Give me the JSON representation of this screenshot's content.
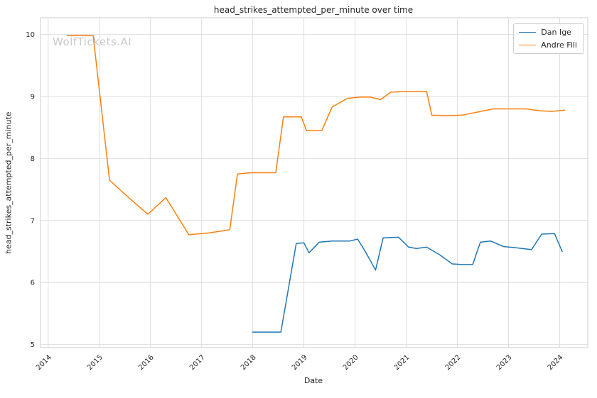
{
  "watermark": "WolfTickets.AI",
  "chart_data": {
    "type": "line",
    "title": "head_strikes_attempted_per_minute over time",
    "xlabel": "Date",
    "ylabel": "head_strikes_attempted_per_minute",
    "xlim": [
      2013.85,
      2024.55
    ],
    "ylim": [
      4.95,
      10.27
    ],
    "xticks": [
      2014,
      2015,
      2016,
      2017,
      2018,
      2019,
      2020,
      2021,
      2022,
      2023,
      2024
    ],
    "yticks": [
      5,
      6,
      7,
      8,
      9,
      10
    ],
    "grid": true,
    "legend_position": "upper right",
    "series": [
      {
        "name": "Dan Ige",
        "color": "#1f77b4",
        "points": [
          [
            2018.0,
            5.2
          ],
          [
            2018.3,
            5.2
          ],
          [
            2018.55,
            5.2
          ],
          [
            2018.85,
            6.63
          ],
          [
            2019.0,
            6.64
          ],
          [
            2019.1,
            6.48
          ],
          [
            2019.3,
            6.65
          ],
          [
            2019.55,
            6.67
          ],
          [
            2019.9,
            6.67
          ],
          [
            2020.05,
            6.7
          ],
          [
            2020.2,
            6.5
          ],
          [
            2020.4,
            6.2
          ],
          [
            2020.55,
            6.72
          ],
          [
            2020.85,
            6.73
          ],
          [
            2021.05,
            6.57
          ],
          [
            2021.2,
            6.55
          ],
          [
            2021.4,
            6.57
          ],
          [
            2021.65,
            6.45
          ],
          [
            2021.9,
            6.3
          ],
          [
            2022.1,
            6.29
          ],
          [
            2022.3,
            6.29
          ],
          [
            2022.45,
            6.65
          ],
          [
            2022.65,
            6.67
          ],
          [
            2022.9,
            6.58
          ],
          [
            2023.15,
            6.56
          ],
          [
            2023.45,
            6.53
          ],
          [
            2023.65,
            6.78
          ],
          [
            2023.9,
            6.79
          ],
          [
            2024.05,
            6.5
          ]
        ]
      },
      {
        "name": "Andre Fili",
        "color": "#ff7f0e",
        "points": [
          [
            2014.37,
            9.98
          ],
          [
            2014.88,
            9.98
          ],
          [
            2015.2,
            7.65
          ],
          [
            2015.6,
            7.35
          ],
          [
            2015.95,
            7.1
          ],
          [
            2016.3,
            7.37
          ],
          [
            2016.75,
            6.77
          ],
          [
            2017.15,
            6.8
          ],
          [
            2017.55,
            6.85
          ],
          [
            2017.7,
            7.75
          ],
          [
            2017.95,
            7.77
          ],
          [
            2018.45,
            7.77
          ],
          [
            2018.6,
            8.67
          ],
          [
            2018.95,
            8.67
          ],
          [
            2019.05,
            8.45
          ],
          [
            2019.35,
            8.45
          ],
          [
            2019.55,
            8.83
          ],
          [
            2019.85,
            8.97
          ],
          [
            2020.1,
            8.99
          ],
          [
            2020.3,
            8.99
          ],
          [
            2020.5,
            8.95
          ],
          [
            2020.7,
            9.07
          ],
          [
            2021.0,
            9.08
          ],
          [
            2021.4,
            9.08
          ],
          [
            2021.5,
            8.7
          ],
          [
            2021.8,
            8.69
          ],
          [
            2022.1,
            8.7
          ],
          [
            2022.4,
            8.75
          ],
          [
            2022.7,
            8.8
          ],
          [
            2023.1,
            8.8
          ],
          [
            2023.35,
            8.8
          ],
          [
            2023.6,
            8.77
          ],
          [
            2023.85,
            8.76
          ],
          [
            2024.1,
            8.78
          ]
        ]
      }
    ]
  }
}
